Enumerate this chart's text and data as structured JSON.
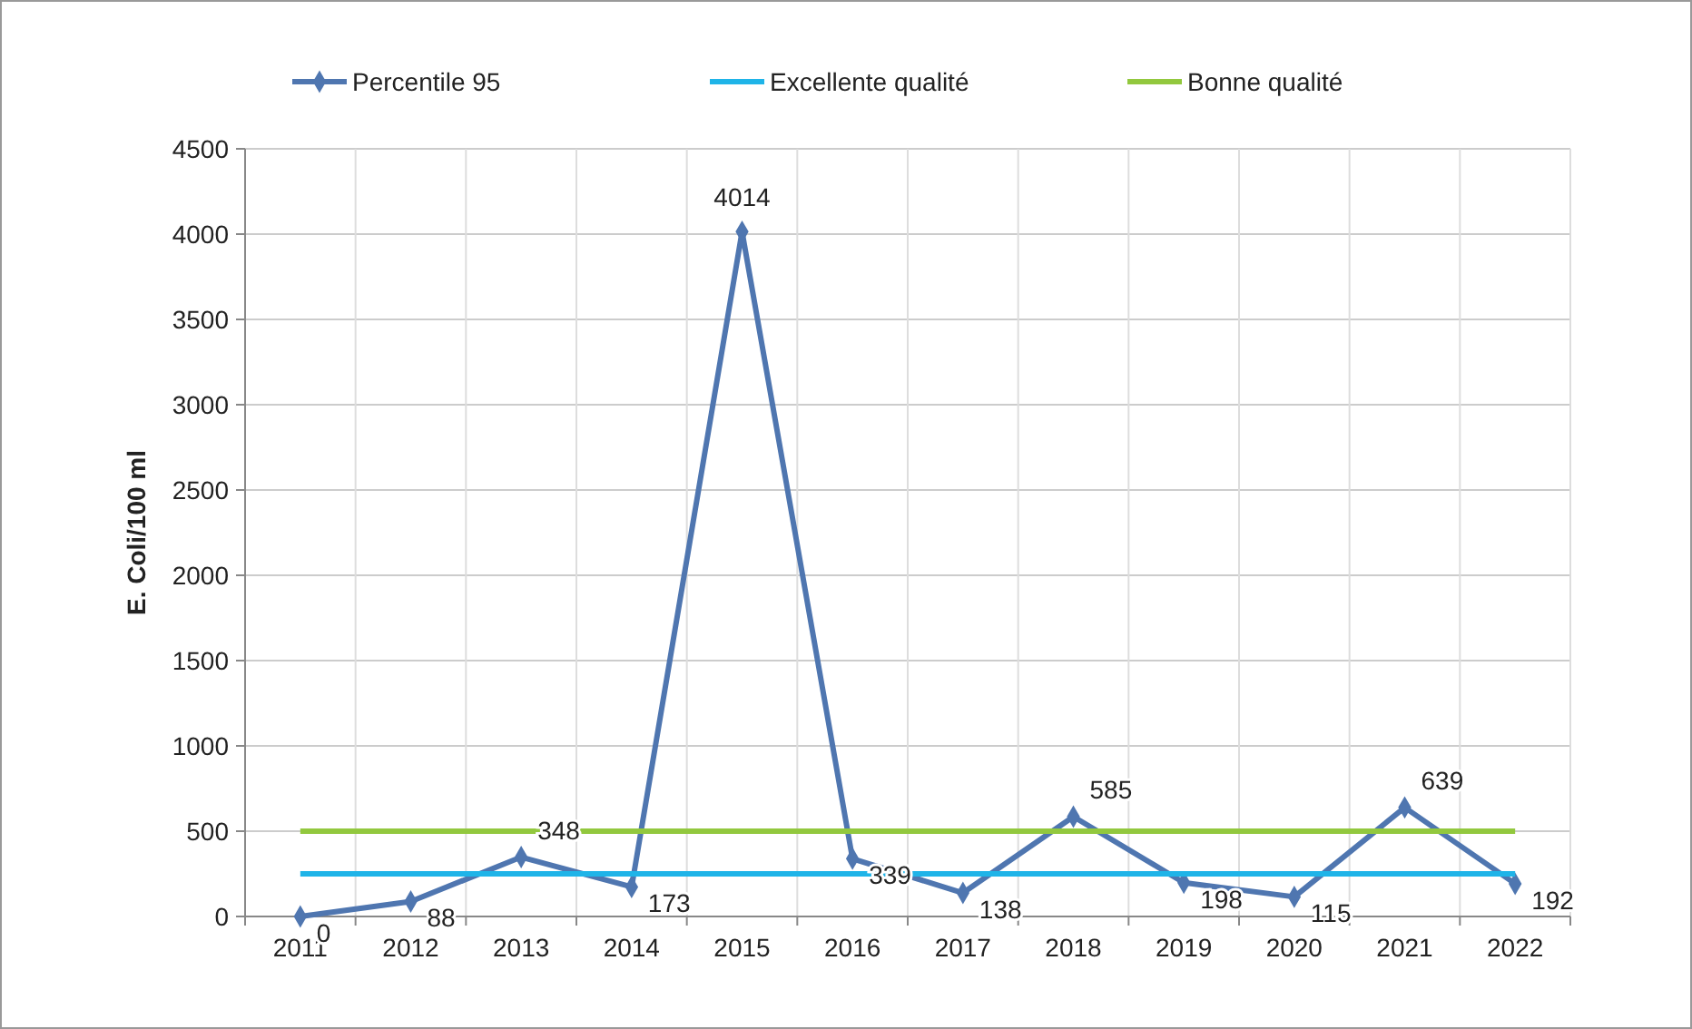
{
  "chart_data": {
    "type": "line",
    "ylabel": "E. Coli/100 ml",
    "categories": [
      "2011",
      "2012",
      "2013",
      "2014",
      "2015",
      "2016",
      "2017",
      "2018",
      "2019",
      "2020",
      "2021",
      "2022"
    ],
    "series": [
      {
        "name": "Percentile 95",
        "color": "#4f76b0",
        "marker": "diamond",
        "values": [
          0,
          88,
          348,
          173,
          4014,
          339,
          138,
          585,
          198,
          115,
          639,
          192
        ],
        "value_labels": [
          "0",
          "88",
          "348",
          "173",
          "4014",
          "339",
          "138",
          "585",
          "198",
          "115",
          "639",
          "192"
        ]
      },
      {
        "name": "Excellente qualité",
        "color": "#1fb4e8",
        "marker": "none",
        "values": [
          250,
          250,
          250,
          250,
          250,
          250,
          250,
          250,
          250,
          250,
          250,
          250
        ]
      },
      {
        "name": "Bonne qualité",
        "color": "#92c83e",
        "marker": "none",
        "values": [
          500,
          500,
          500,
          500,
          500,
          500,
          500,
          500,
          500,
          500,
          500,
          500
        ]
      }
    ],
    "ylim": [
      0,
      4500
    ],
    "yticks": [
      0,
      500,
      1000,
      1500,
      2000,
      2500,
      3000,
      3500,
      4000,
      4500
    ],
    "grid": true,
    "legend": "top"
  }
}
